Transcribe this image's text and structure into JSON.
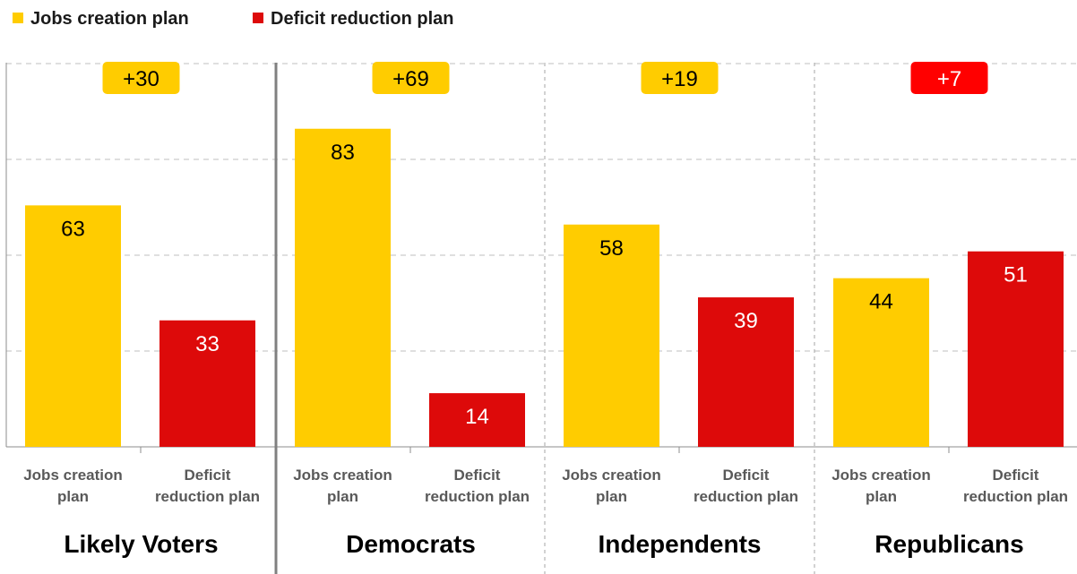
{
  "colors": {
    "jobs": "#FFCC00",
    "deficit": "#DD0A0A",
    "grid": "#BFBFBF",
    "category_text": "#595959",
    "group_text": "#000000"
  },
  "legend": [
    {
      "label": "Jobs creation plan",
      "color": "#FFCC00"
    },
    {
      "label": "Deficit reduction plan",
      "color": "#DD0A0A"
    }
  ],
  "chart_data": {
    "type": "bar",
    "ylim": [
      0,
      100
    ],
    "grid": true,
    "legend_position": "top-left",
    "series": [
      {
        "name": "Jobs creation plan",
        "values": [
          63,
          83,
          58,
          44
        ]
      },
      {
        "name": "Deficit reduction plan",
        "values": [
          33,
          14,
          39,
          51
        ]
      }
    ],
    "groups": [
      {
        "name": "Likely Voters",
        "categories": [
          [
            "Jobs creation",
            "plan"
          ],
          [
            "Deficit",
            "reduction plan"
          ]
        ],
        "values": [
          63,
          33
        ],
        "value_labels": [
          "63",
          "33"
        ],
        "difference_label": "+30",
        "difference_color": "#FFCC00",
        "difference_text_color": "#000000"
      },
      {
        "name": "Democrats",
        "categories": [
          [
            "Jobs creation",
            "plan"
          ],
          [
            "Deficit",
            "reduction plan"
          ]
        ],
        "values": [
          83,
          14
        ],
        "value_labels": [
          "83",
          "14"
        ],
        "difference_label": "+69",
        "difference_color": "#FFCC00",
        "difference_text_color": "#000000"
      },
      {
        "name": "Independents",
        "categories": [
          [
            "Jobs creation",
            "plan"
          ],
          [
            "Deficit",
            "reduction plan"
          ]
        ],
        "values": [
          58,
          39
        ],
        "value_labels": [
          "58",
          "39"
        ],
        "difference_label": "+19",
        "difference_color": "#FFCC00",
        "difference_text_color": "#000000"
      },
      {
        "name": "Republicans",
        "categories": [
          [
            "Jobs creation",
            "plan"
          ],
          [
            "Deficit",
            "reduction plan"
          ]
        ],
        "values": [
          44,
          51
        ],
        "value_labels": [
          "44",
          "51"
        ],
        "difference_label": "+7",
        "difference_color": "#FF0000",
        "difference_text_color": "#FFFFFF"
      }
    ]
  }
}
